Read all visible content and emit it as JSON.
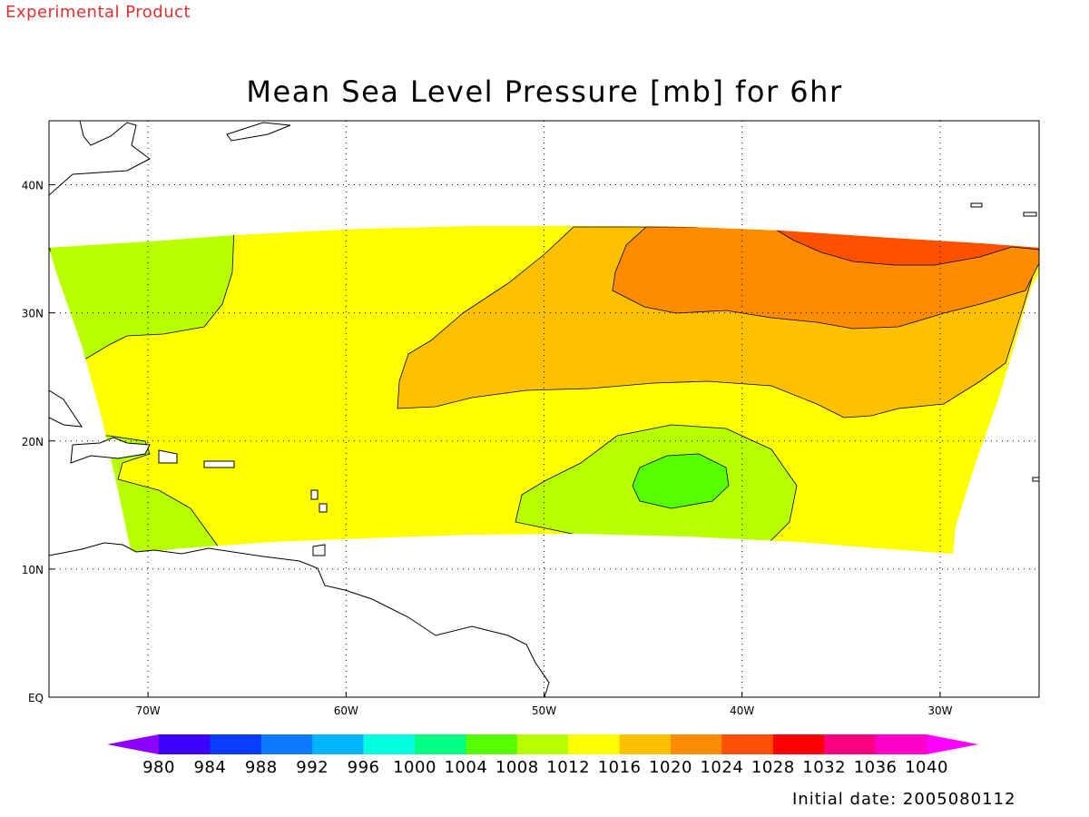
{
  "header": {
    "watermark": "Experimental Product",
    "title": "Mean Sea Level Pressure [mb] for 6hr",
    "initial_date": "Initial date: 2005080112"
  },
  "map": {
    "projection": "latitude-longitude",
    "lon_range": [
      -75,
      -25
    ],
    "lat_range": [
      0,
      45
    ],
    "gridlines": "dotted",
    "longitude_labels": [
      "70W",
      "60W",
      "50W",
      "40W",
      "30W"
    ],
    "latitude_labels": [
      "EQ",
      "10N",
      "20N",
      "30N",
      "40N"
    ],
    "pressure_fields": [
      {
        "label": "1008-1012",
        "color": "#b8ff00"
      },
      {
        "label": "1012-1016",
        "color": "#ffff00"
      },
      {
        "label": "1016-1020",
        "color": "#ffc000"
      },
      {
        "label": "1020-1024",
        "color": "#ff8c00"
      },
      {
        "label": "1024-1028",
        "color": "#ff5000"
      },
      {
        "label": "1004-1008",
        "color": "#55ff00"
      }
    ]
  },
  "colorbar": {
    "labels": [
      "980",
      "984",
      "988",
      "992",
      "996",
      "1000",
      "1004",
      "1008",
      "1012",
      "1016",
      "1020",
      "1024",
      "1028",
      "1032",
      "1036",
      "1040"
    ],
    "colors": [
      "#8c00ff",
      "#3c00ff",
      "#0a3cff",
      "#0a78ff",
      "#00b4ff",
      "#00ffdc",
      "#00ff82",
      "#55ff00",
      "#b8ff00",
      "#ffff00",
      "#ffc000",
      "#ff8c00",
      "#ff5000",
      "#ff0000",
      "#ff0082",
      "#ff00c8",
      "#ff00ff"
    ]
  }
}
